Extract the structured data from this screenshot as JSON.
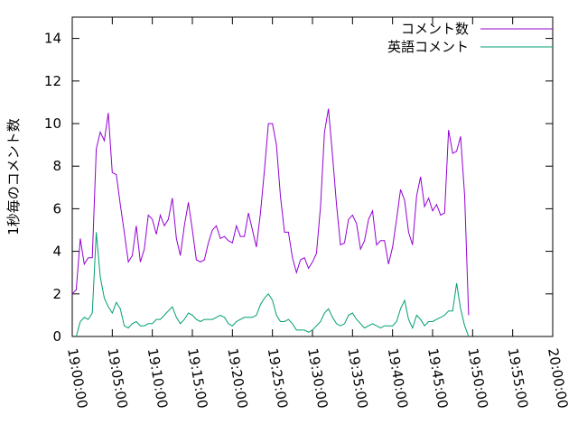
{
  "chart_data": {
    "type": "line",
    "title": "",
    "xlabel": "",
    "ylabel": "1秒毎のコメント数",
    "ylim": [
      0,
      15
    ],
    "yticks": [
      0,
      2,
      4,
      6,
      8,
      10,
      12,
      14
    ],
    "xlim": [
      "19:00:00",
      "20:00:00"
    ],
    "xticks": [
      "19:00:00",
      "19:05:00",
      "19:10:00",
      "19:15:00",
      "19:20:00",
      "19:25:00",
      "19:30:00",
      "19:35:00",
      "19:40:00",
      "19:45:00",
      "19:50:00",
      "19:55:00",
      "20:00:00"
    ],
    "grid": false,
    "legend": "top-right",
    "series": [
      {
        "name": "コメント数",
        "color": "#9400d3",
        "points": [
          [
            "19:00:00",
            2.0
          ],
          [
            "19:00:30",
            2.2
          ],
          [
            "19:01:00",
            4.6
          ],
          [
            "19:01:30",
            3.4
          ],
          [
            "19:02:00",
            3.7
          ],
          [
            "19:02:30",
            3.7
          ],
          [
            "19:03:00",
            8.8
          ],
          [
            "19:03:30",
            9.6
          ],
          [
            "19:04:00",
            9.2
          ],
          [
            "19:04:30",
            10.5
          ],
          [
            "19:05:00",
            7.7
          ],
          [
            "19:05:30",
            7.6
          ],
          [
            "19:06:00",
            6.2
          ],
          [
            "19:06:30",
            4.9
          ],
          [
            "19:07:00",
            3.5
          ],
          [
            "19:07:30",
            3.8
          ],
          [
            "19:08:00",
            5.2
          ],
          [
            "19:08:30",
            3.5
          ],
          [
            "19:09:00",
            4.1
          ],
          [
            "19:09:30",
            5.7
          ],
          [
            "19:10:00",
            5.5
          ],
          [
            "19:10:30",
            4.8
          ],
          [
            "19:11:00",
            5.7
          ],
          [
            "19:11:30",
            5.2
          ],
          [
            "19:12:00",
            5.5
          ],
          [
            "19:12:30",
            6.5
          ],
          [
            "19:13:00",
            4.6
          ],
          [
            "19:13:30",
            3.8
          ],
          [
            "19:14:00",
            5.2
          ],
          [
            "19:14:30",
            6.3
          ],
          [
            "19:15:00",
            5.0
          ],
          [
            "19:15:30",
            3.6
          ],
          [
            "19:16:00",
            3.5
          ],
          [
            "19:16:30",
            3.6
          ],
          [
            "19:17:00",
            4.4
          ],
          [
            "19:17:30",
            5.0
          ],
          [
            "19:18:00",
            5.2
          ],
          [
            "19:18:30",
            4.6
          ],
          [
            "19:19:00",
            4.7
          ],
          [
            "19:19:30",
            4.5
          ],
          [
            "19:20:00",
            4.4
          ],
          [
            "19:20:30",
            5.2
          ],
          [
            "19:21:00",
            4.7
          ],
          [
            "19:21:30",
            4.7
          ],
          [
            "19:22:00",
            5.8
          ],
          [
            "19:22:30",
            5.0
          ],
          [
            "19:23:00",
            4.2
          ],
          [
            "19:23:30",
            5.8
          ],
          [
            "19:24:00",
            7.8
          ],
          [
            "19:24:30",
            10.0
          ],
          [
            "19:25:00",
            10.0
          ],
          [
            "19:25:30",
            9.0
          ],
          [
            "19:26:00",
            6.6
          ],
          [
            "19:26:30",
            4.9
          ],
          [
            "19:27:00",
            4.9
          ],
          [
            "19:27:30",
            3.7
          ],
          [
            "19:28:00",
            3.0
          ],
          [
            "19:28:30",
            3.6
          ],
          [
            "19:29:00",
            3.7
          ],
          [
            "19:29:30",
            3.2
          ],
          [
            "19:30:00",
            3.5
          ],
          [
            "19:30:30",
            3.9
          ],
          [
            "19:31:00",
            6.1
          ],
          [
            "19:31:30",
            9.6
          ],
          [
            "19:32:00",
            10.7
          ],
          [
            "19:32:30",
            8.5
          ],
          [
            "19:33:00",
            6.2
          ],
          [
            "19:33:30",
            4.3
          ],
          [
            "19:34:00",
            4.4
          ],
          [
            "19:34:30",
            5.5
          ],
          [
            "19:35:00",
            5.7
          ],
          [
            "19:35:30",
            5.3
          ],
          [
            "19:36:00",
            4.1
          ],
          [
            "19:36:30",
            4.5
          ],
          [
            "19:37:00",
            5.5
          ],
          [
            "19:37:30",
            5.9
          ],
          [
            "19:38:00",
            4.3
          ],
          [
            "19:38:30",
            4.5
          ],
          [
            "19:39:00",
            4.5
          ],
          [
            "19:39:30",
            3.4
          ],
          [
            "19:40:00",
            4.2
          ],
          [
            "19:40:30",
            5.5
          ],
          [
            "19:41:00",
            6.9
          ],
          [
            "19:41:30",
            6.4
          ],
          [
            "19:42:00",
            4.9
          ],
          [
            "19:42:30",
            4.3
          ],
          [
            "19:43:00",
            6.6
          ],
          [
            "19:43:30",
            7.5
          ],
          [
            "19:44:00",
            6.1
          ],
          [
            "19:44:30",
            6.5
          ],
          [
            "19:45:00",
            5.9
          ],
          [
            "19:45:30",
            6.2
          ],
          [
            "19:46:00",
            5.7
          ],
          [
            "19:46:30",
            5.8
          ],
          [
            "19:47:00",
            9.7
          ],
          [
            "19:47:30",
            8.6
          ],
          [
            "19:48:00",
            8.7
          ],
          [
            "19:48:30",
            9.4
          ],
          [
            "19:49:00",
            6.6
          ],
          [
            "19:49:30",
            1.0
          ]
        ]
      },
      {
        "name": "英語コメント",
        "color": "#009e73",
        "points": [
          [
            "19:00:30",
            0.0
          ],
          [
            "19:01:00",
            0.7
          ],
          [
            "19:01:30",
            0.9
          ],
          [
            "19:02:00",
            0.8
          ],
          [
            "19:02:30",
            1.1
          ],
          [
            "19:03:00",
            4.9
          ],
          [
            "19:03:30",
            2.8
          ],
          [
            "19:04:00",
            1.8
          ],
          [
            "19:04:30",
            1.4
          ],
          [
            "19:05:00",
            1.1
          ],
          [
            "19:05:30",
            1.6
          ],
          [
            "19:06:00",
            1.3
          ],
          [
            "19:06:30",
            0.5
          ],
          [
            "19:07:00",
            0.4
          ],
          [
            "19:07:30",
            0.6
          ],
          [
            "19:08:00",
            0.7
          ],
          [
            "19:08:30",
            0.5
          ],
          [
            "19:09:00",
            0.5
          ],
          [
            "19:09:30",
            0.6
          ],
          [
            "19:10:00",
            0.6
          ],
          [
            "19:10:30",
            0.8
          ],
          [
            "19:11:00",
            0.8
          ],
          [
            "19:11:30",
            1.0
          ],
          [
            "19:12:00",
            1.2
          ],
          [
            "19:12:30",
            1.4
          ],
          [
            "19:13:00",
            0.9
          ],
          [
            "19:13:30",
            0.6
          ],
          [
            "19:14:00",
            0.8
          ],
          [
            "19:14:30",
            1.1
          ],
          [
            "19:15:00",
            1.0
          ],
          [
            "19:15:30",
            0.8
          ],
          [
            "19:16:00",
            0.7
          ],
          [
            "19:16:30",
            0.8
          ],
          [
            "19:17:00",
            0.8
          ],
          [
            "19:17:30",
            0.8
          ],
          [
            "19:18:00",
            0.9
          ],
          [
            "19:18:30",
            1.0
          ],
          [
            "19:19:00",
            0.9
          ],
          [
            "19:19:30",
            0.6
          ],
          [
            "19:20:00",
            0.5
          ],
          [
            "19:20:30",
            0.7
          ],
          [
            "19:21:00",
            0.8
          ],
          [
            "19:21:30",
            0.9
          ],
          [
            "19:22:00",
            0.9
          ],
          [
            "19:22:30",
            0.9
          ],
          [
            "19:23:00",
            1.0
          ],
          [
            "19:23:30",
            1.5
          ],
          [
            "19:24:00",
            1.8
          ],
          [
            "19:24:30",
            2.0
          ],
          [
            "19:25:00",
            1.7
          ],
          [
            "19:25:30",
            1.0
          ],
          [
            "19:26:00",
            0.7
          ],
          [
            "19:26:30",
            0.7
          ],
          [
            "19:27:00",
            0.8
          ],
          [
            "19:27:30",
            0.6
          ],
          [
            "19:28:00",
            0.3
          ],
          [
            "19:28:30",
            0.3
          ],
          [
            "19:29:00",
            0.3
          ],
          [
            "19:29:30",
            0.2
          ],
          [
            "19:30:00",
            0.3
          ],
          [
            "19:30:30",
            0.5
          ],
          [
            "19:31:00",
            0.7
          ],
          [
            "19:31:30",
            1.1
          ],
          [
            "19:32:00",
            1.3
          ],
          [
            "19:32:30",
            0.9
          ],
          [
            "19:33:00",
            0.6
          ],
          [
            "19:33:30",
            0.5
          ],
          [
            "19:34:00",
            0.6
          ],
          [
            "19:34:30",
            1.0
          ],
          [
            "19:35:00",
            1.1
          ],
          [
            "19:35:30",
            0.8
          ],
          [
            "19:36:00",
            0.6
          ],
          [
            "19:36:30",
            0.4
          ],
          [
            "19:37:00",
            0.5
          ],
          [
            "19:37:30",
            0.6
          ],
          [
            "19:38:00",
            0.5
          ],
          [
            "19:38:30",
            0.4
          ],
          [
            "19:39:00",
            0.5
          ],
          [
            "19:39:30",
            0.5
          ],
          [
            "19:40:00",
            0.5
          ],
          [
            "19:40:30",
            0.7
          ],
          [
            "19:41:00",
            1.3
          ],
          [
            "19:41:30",
            1.7
          ],
          [
            "19:42:00",
            0.8
          ],
          [
            "19:42:30",
            0.4
          ],
          [
            "19:43:00",
            1.0
          ],
          [
            "19:43:30",
            0.8
          ],
          [
            "19:44:00",
            0.5
          ],
          [
            "19:44:30",
            0.7
          ],
          [
            "19:45:00",
            0.7
          ],
          [
            "19:45:30",
            0.8
          ],
          [
            "19:46:00",
            0.9
          ],
          [
            "19:46:30",
            1.0
          ],
          [
            "19:47:00",
            1.2
          ],
          [
            "19:47:30",
            1.2
          ],
          [
            "19:48:00",
            2.5
          ],
          [
            "19:48:30",
            1.3
          ],
          [
            "19:49:00",
            0.5
          ],
          [
            "19:49:30",
            0.0
          ]
        ]
      }
    ]
  }
}
